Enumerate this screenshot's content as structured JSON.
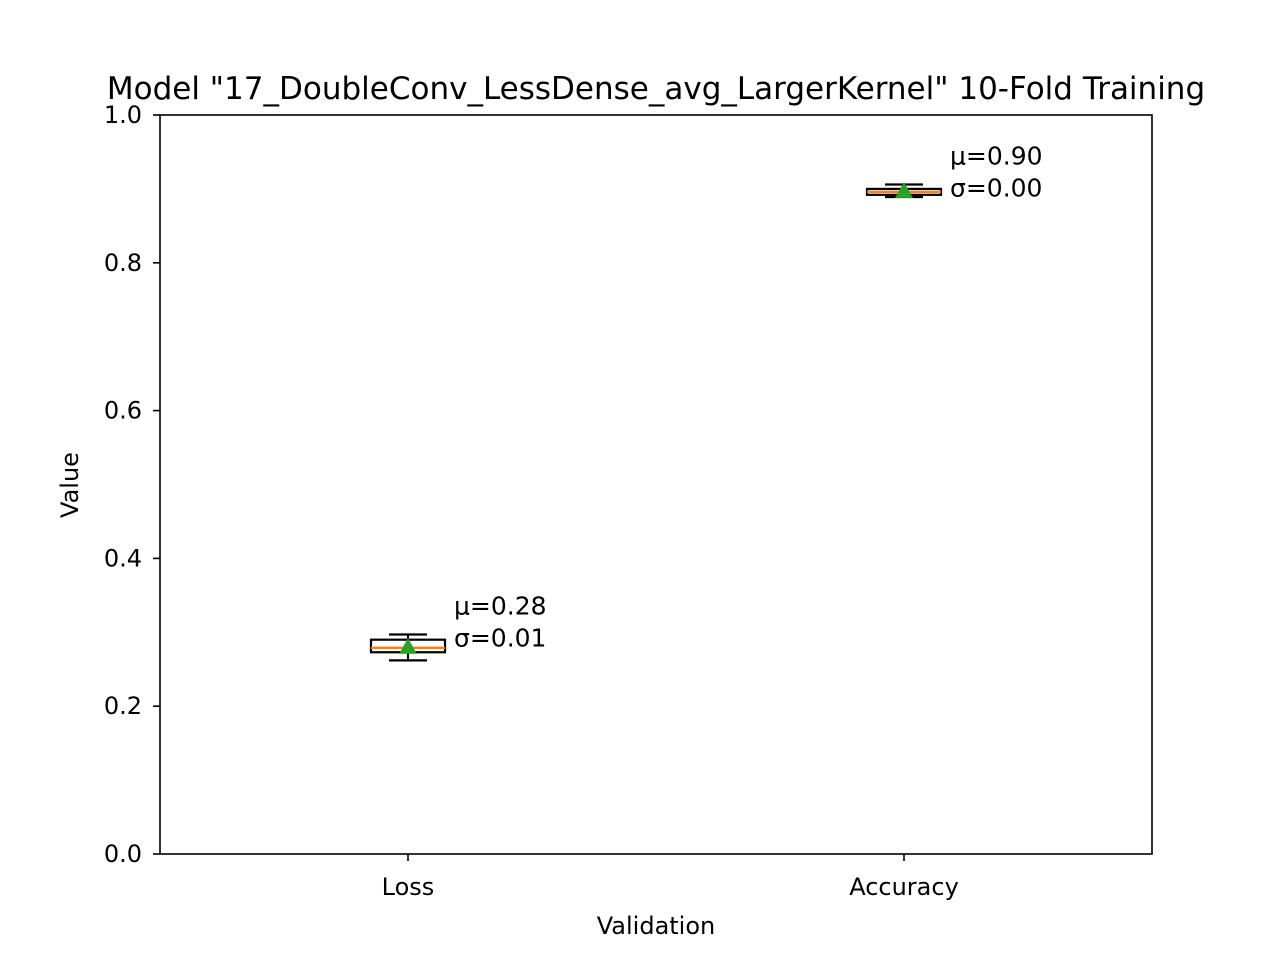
{
  "chart_data": {
    "type": "box",
    "title": "Model \"17_DoubleConv_LessDense_avg_LargerKernel\" 10-Fold Training",
    "xlabel": "Validation",
    "ylabel": "Value",
    "ylim": [
      0,
      1
    ],
    "yticks": [
      "0.0",
      "0.2",
      "0.4",
      "0.6",
      "0.8",
      "1.0"
    ],
    "categories": [
      "Loss",
      "Accuracy"
    ],
    "grid": false,
    "boxes": [
      {
        "category": "Loss",
        "whisker_low": 0.262,
        "q1": 0.273,
        "median": 0.279,
        "q3": 0.29,
        "whisker_high": 0.297,
        "mean": 0.28,
        "annotation": [
          "μ=0.28",
          "σ=0.01"
        ]
      },
      {
        "category": "Accuracy",
        "whisker_low": 0.889,
        "q1": 0.892,
        "median": 0.896,
        "q3 ": 0.9,
        "q3": 0.9,
        "whisker_high": 0.906,
        "mean": 0.897,
        "annotation": [
          "μ=0.90",
          "σ=0.00"
        ]
      }
    ],
    "colors": {
      "median": "#ff7f0e",
      "mean_marker": "#2ca02c",
      "box": "#000000"
    }
  }
}
